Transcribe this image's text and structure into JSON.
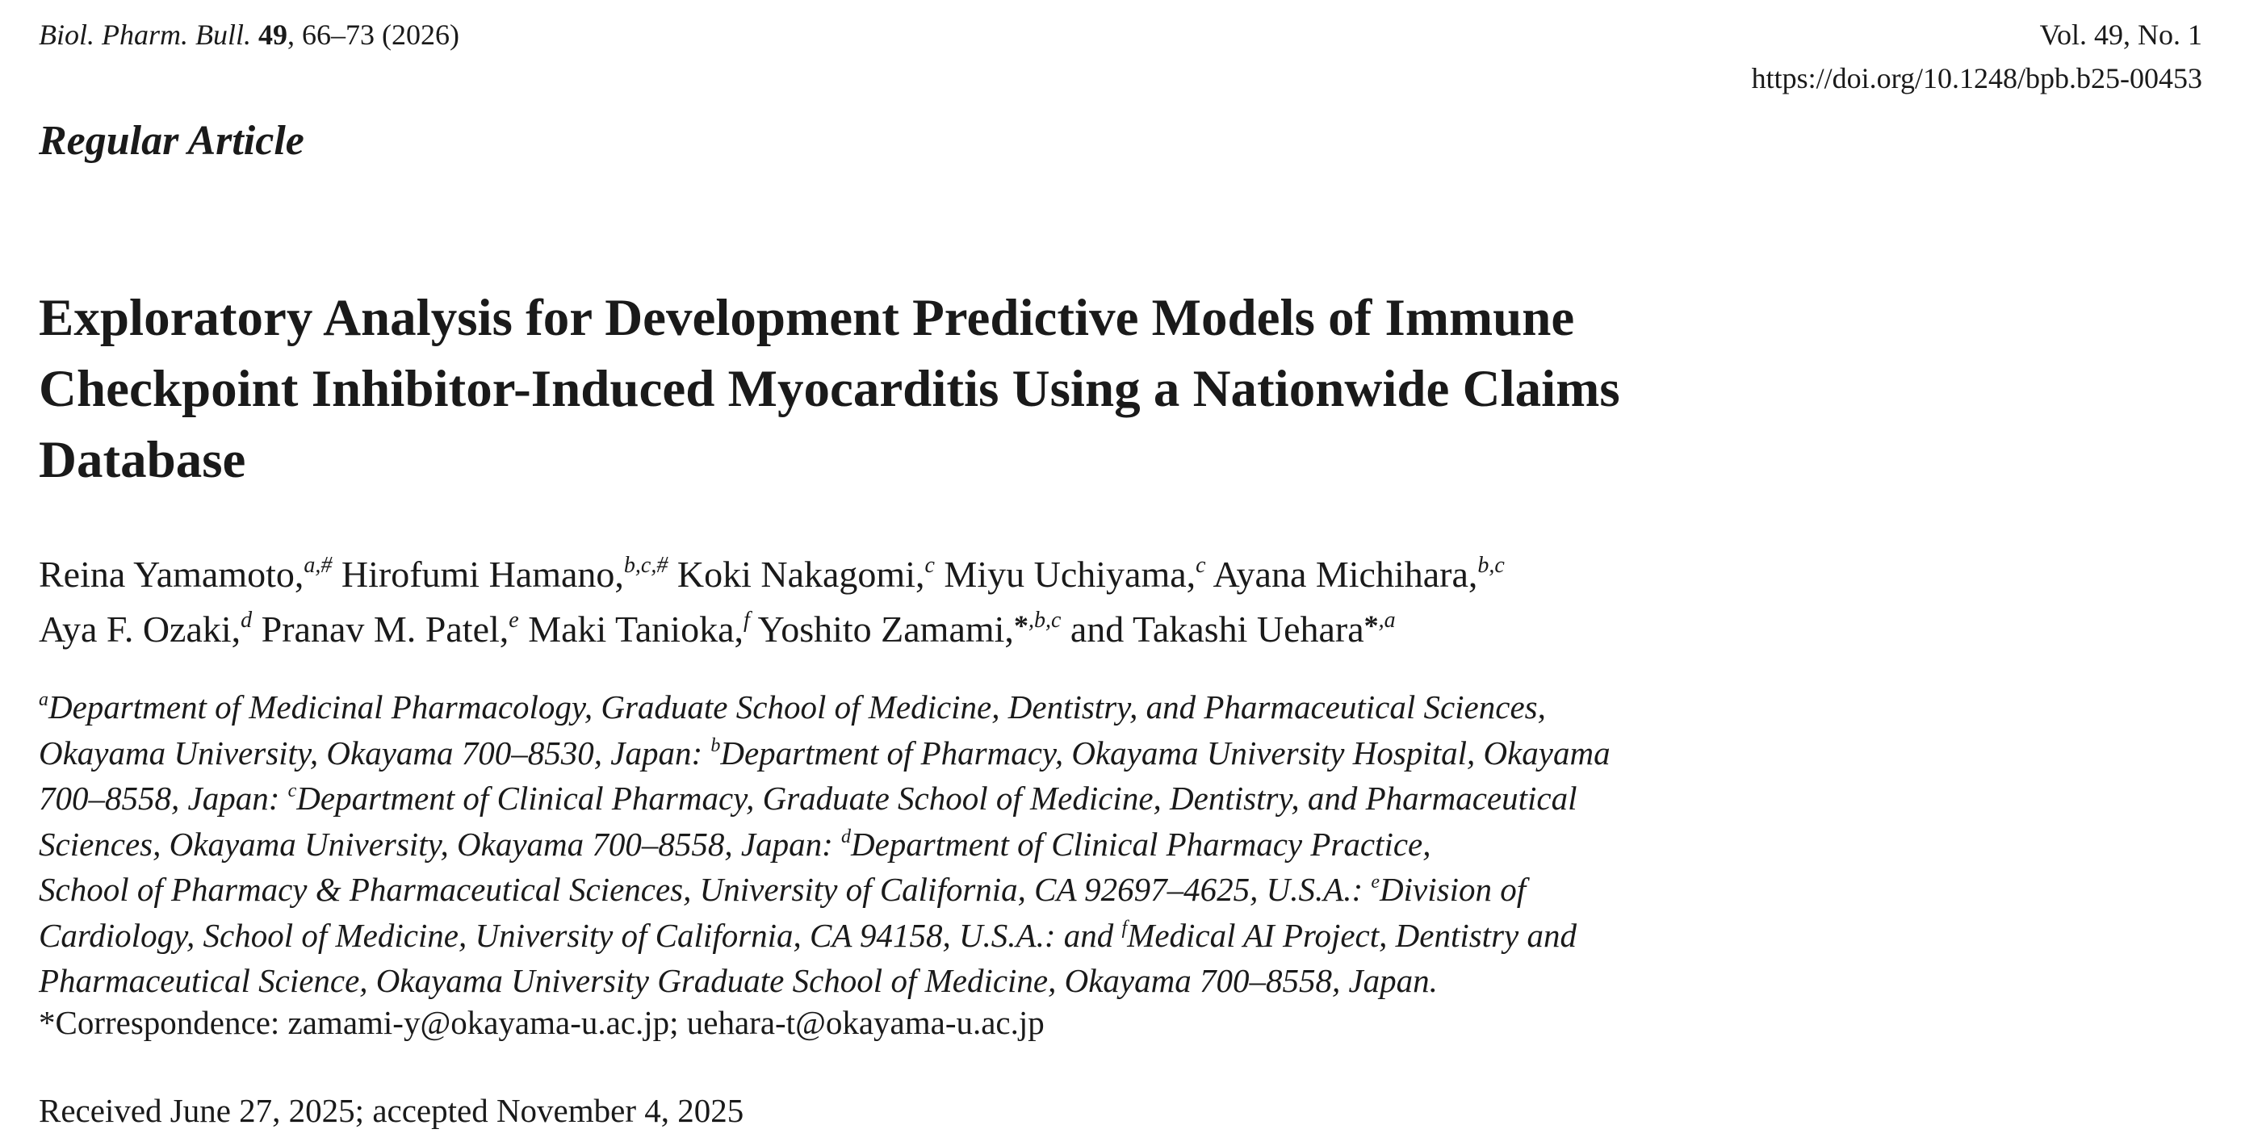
{
  "header": {
    "journal_abbrev": "Biol. Pharm. Bull.",
    "volume": "49",
    "pages_year": ", 66–73 (2026)",
    "vol_issue": "Vol. 49, No. 1",
    "doi": "https://doi.org/10.1248/bpb.b25-00453"
  },
  "article_type": "Regular Article",
  "title_lines": [
    "Exploratory Analysis for Development Predictive Models of Immune",
    "Checkpoint Inhibitor-Induced Myocarditis Using a Nationwide Claims",
    "Database"
  ],
  "authors": [
    [
      {
        "name": "Reina Yamamoto,",
        "sup": "a,#"
      },
      {
        "name": " Hirofumi Hamano,",
        "sup": "b,c,#"
      },
      {
        "name": " Koki Nakagomi,",
        "sup": "c"
      },
      {
        "name": " Miyu Uchiyama,",
        "sup": "c"
      },
      {
        "name": " Ayana Michihara,",
        "sup": "b,c"
      }
    ],
    [
      {
        "name": "Aya F. Ozaki,",
        "sup": "d"
      },
      {
        "name": " Pranav M. Patel,",
        "sup": "e"
      },
      {
        "name": " Maki Tanioka,",
        "sup": "f"
      },
      {
        "name": " Yoshito Zamami,",
        "star": "*",
        "sup": ",b,c"
      },
      {
        "name": " and Takashi Uehara",
        "star": "*",
        "sup": ",a"
      }
    ]
  ],
  "affiliation_lines": [
    [
      {
        "sup": "a"
      },
      {
        "t": "Department of Medicinal Pharmacology, Graduate School of Medicine, Dentistry, and Pharmaceutical Sciences,"
      }
    ],
    [
      {
        "t": "Okayama University, Okayama 700–8530, Japan: "
      },
      {
        "sup": "b"
      },
      {
        "t": "Department of Pharmacy, Okayama University Hospital, Okayama"
      }
    ],
    [
      {
        "t": "700–8558, Japan: "
      },
      {
        "sup": "c"
      },
      {
        "t": "Department of Clinical Pharmacy, Graduate School of Medicine, Dentistry, and Pharmaceutical"
      }
    ],
    [
      {
        "t": "Sciences, Okayama University, Okayama 700–8558, Japan: "
      },
      {
        "sup": "d"
      },
      {
        "t": "Department of Clinical Pharmacy Practice,"
      }
    ],
    [
      {
        "t": "School of Pharmacy & Pharmaceutical Sciences, University of California, CA 92697–4625, U.S.A.: "
      },
      {
        "sup": "e"
      },
      {
        "t": "Division of"
      }
    ],
    [
      {
        "t": "Cardiology, School of Medicine, University of California, CA 94158, U.S.A.: and "
      },
      {
        "sup": "f"
      },
      {
        "t": "Medical AI Project, Dentistry and"
      }
    ],
    [
      {
        "t": "Pharmaceutical Science, Okayama University Graduate School of Medicine, Okayama 700–8558, Japan."
      }
    ]
  ],
  "correspondence": "*Correspondence: zamami-y@okayama-u.ac.jp; uehara-t@okayama-u.ac.jp",
  "received": "Received June 27, 2025; accepted November 4, 2025"
}
